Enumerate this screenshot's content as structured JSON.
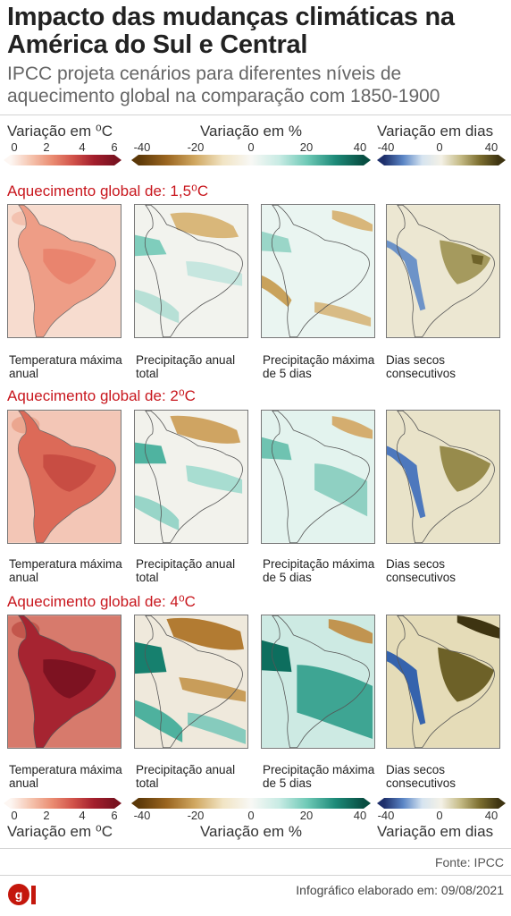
{
  "title": "Impacto das mudanças climáticas na América do Sul e Central",
  "subtitle": "IPCC projeta cenários para diferentes níveis de aquecimento global na comparação com 1850-1900",
  "legends": {
    "temperature": {
      "label": "Variação em ⁰C",
      "ticks": [
        "0",
        "2",
        "4",
        "6"
      ]
    },
    "precipitation": {
      "label": "Variação em %",
      "ticks": [
        "-40",
        "-20",
        "0",
        "20",
        "40"
      ]
    },
    "dry_days": {
      "label": "Variação em dias",
      "ticks": [
        "-40",
        "0",
        "40"
      ]
    }
  },
  "sections": [
    {
      "heading": "Aquecimento global de: 1,5⁰C"
    },
    {
      "heading": "Aquecimento global de: 2⁰C"
    },
    {
      "heading": "Aquecimento global de: 4⁰C"
    }
  ],
  "panel_captions": [
    "Temperatura máxima anual",
    "Precipitação anual total",
    "Precipitação máxima de 5 dias",
    "Dias secos consecutivos"
  ],
  "colors": {
    "heading_red": "#c8161d",
    "temp_15": "#ef9a84",
    "temp_2": "#df6f5e",
    "temp_4": "#a82330",
    "prec_dry": "#b8893c",
    "prec_wet": "#1d8a78",
    "days_dry": "#8f7f3a",
    "days_wet": "#4f79b8"
  },
  "source": "Fonte: IPCC",
  "credit": "Infográfico elaborado em: 09/08/2021",
  "logo": "G1"
}
